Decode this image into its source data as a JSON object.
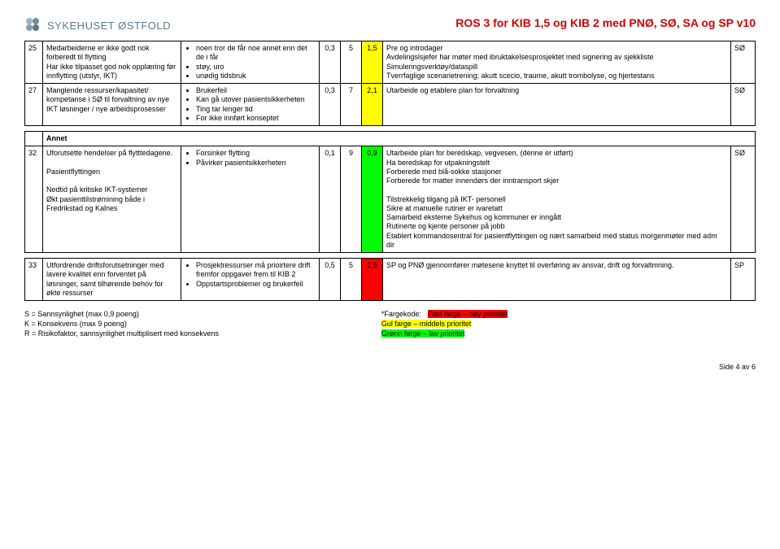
{
  "header": {
    "logo_text": "SYKEHUSET ØSTFOLD",
    "doc_title": "ROS 3 for KIB 1,5 og KIB 2 med PNØ, SØ, SA og SP v10"
  },
  "rows_top": [
    {
      "num": "25",
      "desc": "Medarbeiderne er ikke godt nok forberedt til flytting\nHar ikke tilpasset god nok opplæring før innflytting (utstyr, IKT)",
      "cause": [
        "noen tror de får noe annet enn det de i får",
        "støy, uro",
        "unødig tidsbruk"
      ],
      "s": "0,3",
      "k": "5",
      "r": "1,5",
      "r_color": "yellow",
      "action": "Pre og introdager\nAvdelingslsjefer har møter med ibruktakelsesprosjektet med signering av sjekkliste\nSimuleringsverktøy/dataspill\nTverrfaglige scenarietrening; akutt scecio, traume, akutt trombolyse, og hjertestans",
      "owner": "SØ"
    },
    {
      "num": "27",
      "desc": "Manglende ressurser/kapasitet/ kompetanse i SØ til forvaltning av nye IKT løsninger / nye arbeidsprosesser",
      "cause": [
        "Brukerfeil",
        "Kan gå utover pasientsikkerheten",
        "Ting tar lenger tid",
        "For ikke innført konseptet"
      ],
      "s": "0,3",
      "k": "7",
      "r": "2,1",
      "r_color": "yellow",
      "action": "Utarbeide og etablere plan for forvaltning",
      "owner": "SØ"
    }
  ],
  "section_label": "Annet",
  "rows_mid": [
    {
      "num": "32",
      "desc": "Uforutsette hendelser på flytttedagene.\n\nPasientflyttingen\n\nNedtid på kritiske IKT-systemer\nØkt pasienttilstrømining både i Fredrikstad og Kalnes",
      "cause": [
        "Forsinker flytting",
        "Påvirker pasientsikkerheten"
      ],
      "s": "0,1",
      "k": "9",
      "r": "0,9",
      "r_color": "green",
      "action": "Utarbeide plan for beredskap, vegvesen, (denne er utført)\nHa beredskap for utpakningstelt\nForberede med blå-sokke stasjoner\nForberede for matter innendørs der inntransport skjer\n\nTilstrekkelig tilgang på IKT- personell\nSikre at manuelle rutiner er ivaretatt\nSamarbeid eksterne Sykehus og kommuner er inngått\nRutinerte og kjente personer på jobb\nEtablert kommandosentral for pasientflyttingen og nært samarbeid med status morgenmøter med adm dir",
      "owner": "SØ"
    }
  ],
  "rows_bot": [
    {
      "num": "33",
      "desc": "Utfordrende driftsforutsetninger med lavere kvalitet enn forventet på løsninger, samt tilhørende behov for økte ressurser",
      "cause": [
        "Prosjektressurser må prioirtere drift fremfor oppgaver frem til KIB 2",
        "Oppstartsproblemer og brukerfeil"
      ],
      "s": "0,5",
      "k": "5",
      "r": "2,5",
      "r_color": "red",
      "action": "SP og PNØ gjennomfører møteserie knyttet til overføring av ansvar, drift og forvaltmning.",
      "owner": "SP"
    }
  ],
  "legend": {
    "s_line": "S = Sannsynlighet (max 0,9 poeng)",
    "k_line": "K = Konsekvens (max 9 poeng)",
    "r_line": "R = Risikofaktor, sannsynlighet multiplisert med konsekvens",
    "code_label": "*Fargekode:",
    "red": "Rød farge – høy prioritet",
    "yellow": "Gul farge – middels prioritet",
    "green": "Grønn farge – lav prioritet"
  },
  "footer": {
    "page": "Side 4  av  6"
  },
  "style": {
    "title_color": "#d00000",
    "red": "#ff0000",
    "yellow": "#ffff00",
    "green": "#00ff00",
    "logo_color": "#5a7a8c"
  }
}
